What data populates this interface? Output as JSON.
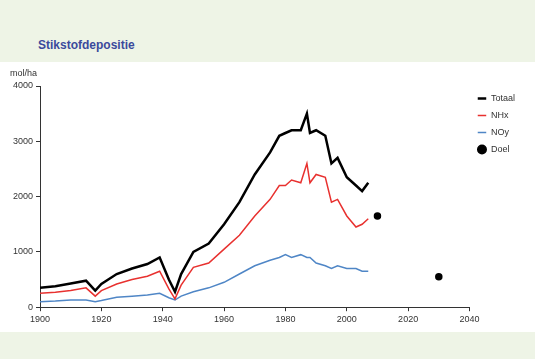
{
  "chart_data": {
    "type": "line",
    "title": "Stikstofdepositie",
    "y_label": "mol/ha",
    "x": [
      1900,
      1905,
      1910,
      1915,
      1918,
      1920,
      1925,
      1930,
      1935,
      1939,
      1942,
      1944,
      1946,
      1950,
      1955,
      1960,
      1965,
      1970,
      1975,
      1978,
      1980,
      1982,
      1985,
      1987,
      1988,
      1990,
      1993,
      1995,
      1997,
      2000,
      2003,
      2005,
      2007
    ],
    "series": [
      {
        "name": "Totaal",
        "color": "#000000",
        "values": [
          350,
          380,
          430,
          480,
          300,
          420,
          600,
          700,
          780,
          900,
          500,
          280,
          600,
          1000,
          1150,
          1500,
          1900,
          2400,
          2800,
          3100,
          3150,
          3200,
          3200,
          3500,
          3150,
          3200,
          3100,
          2600,
          2700,
          2350,
          2200,
          2100,
          2250
        ]
      },
      {
        "name": "NHx",
        "color": "#e8312f",
        "values": [
          250,
          270,
          300,
          350,
          200,
          300,
          420,
          500,
          560,
          650,
          330,
          150,
          400,
          720,
          800,
          1050,
          1300,
          1650,
          1950,
          2200,
          2200,
          2300,
          2250,
          2600,
          2250,
          2400,
          2350,
          1900,
          1950,
          1650,
          1450,
          1500,
          1600
        ]
      },
      {
        "name": "NOy",
        "color": "#4f86c6",
        "values": [
          100,
          110,
          130,
          130,
          100,
          120,
          180,
          200,
          220,
          250,
          170,
          130,
          200,
          280,
          350,
          450,
          600,
          750,
          850,
          900,
          950,
          900,
          950,
          900,
          900,
          800,
          750,
          700,
          750,
          700,
          700,
          650,
          650
        ]
      },
      {
        "name": "Doel",
        "color": "#000000",
        "type": "scatter",
        "marker": "circle",
        "x": [
          2010,
          2030
        ],
        "values": [
          1650,
          550
        ]
      }
    ],
    "xlim": [
      1900,
      2040
    ],
    "xticks": [
      1900,
      1920,
      1940,
      1960,
      1980,
      2000,
      2020,
      2040
    ],
    "ylim": [
      0,
      4000
    ],
    "yticks": [
      0,
      1000,
      2000,
      3000,
      4000
    ],
    "grid": false,
    "legend": "right"
  }
}
